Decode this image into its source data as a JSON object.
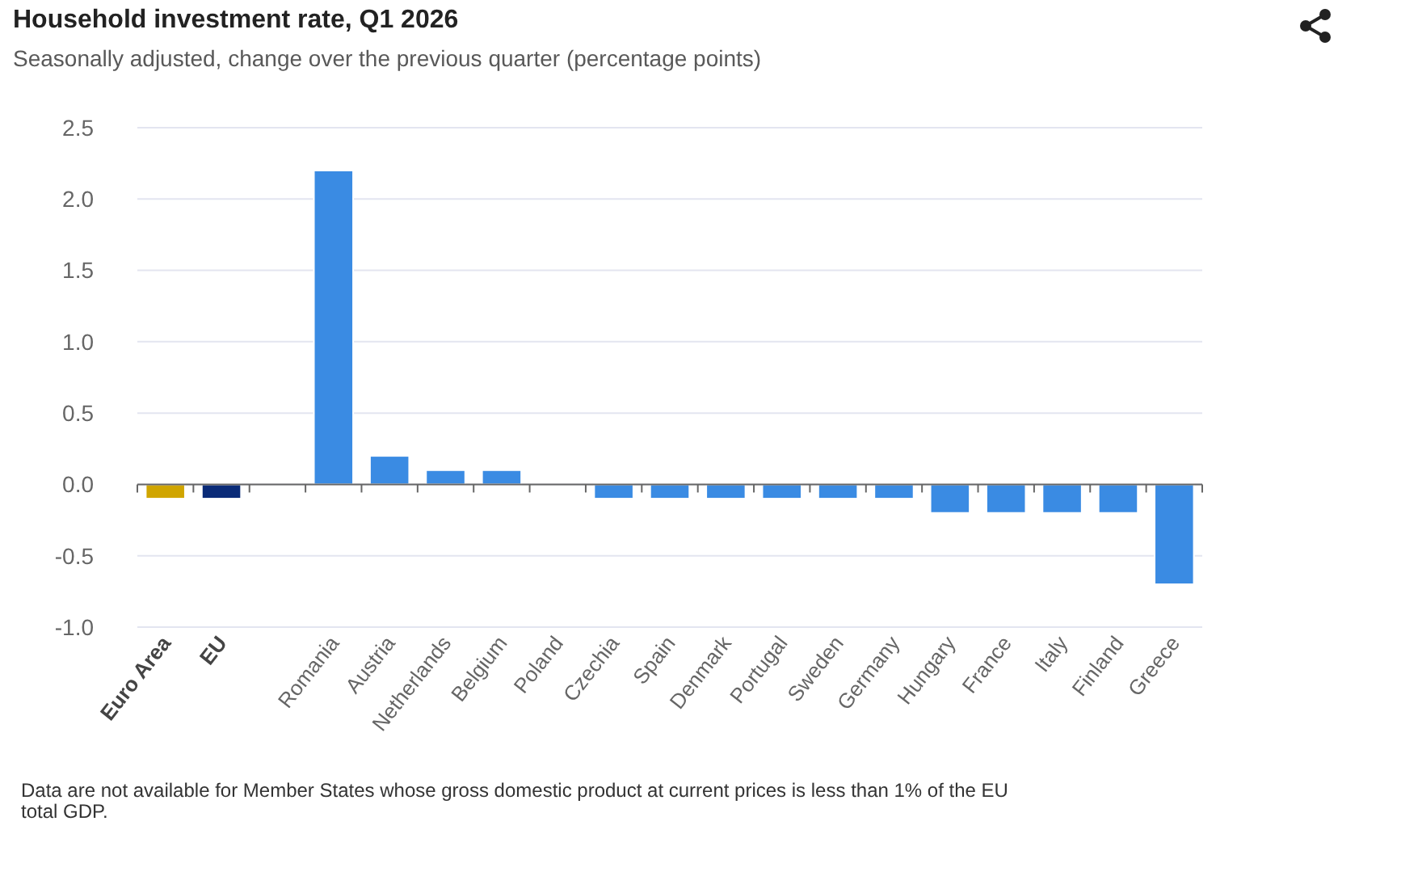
{
  "chart_data": {
    "type": "bar",
    "title": "Household investment rate, Q1 2026",
    "subtitle": "Seasonally adjusted, change over the previous quarter (percentage points)",
    "categories": [
      "Euro Area",
      "EU",
      null,
      "Romania",
      "Austria",
      "Netherlands",
      "Belgium",
      "Poland",
      "Czechia",
      "Spain",
      "Denmark",
      "Portugal",
      "Sweden",
      "Germany",
      "Hungary",
      "France",
      "Italy",
      "Finland",
      "Greece"
    ],
    "values": [
      -0.1,
      -0.1,
      null,
      2.2,
      0.2,
      0.1,
      0.1,
      0,
      -0.1,
      -0.1,
      -0.1,
      -0.1,
      -0.1,
      -0.1,
      -0.2,
      -0.2,
      -0.2,
      -0.2,
      -0.7
    ],
    "colors": [
      "#d0a500",
      "#0a2b78",
      null,
      "#3a8be3",
      "#3a8be3",
      "#3a8be3",
      "#3a8be3",
      "#3a8be3",
      "#3a8be3",
      "#3a8be3",
      "#3a8be3",
      "#3a8be3",
      "#3a8be3",
      "#3a8be3",
      "#3a8be3",
      "#3a8be3",
      "#3a8be3",
      "#3a8be3",
      "#3a8be3"
    ],
    "ylim": [
      -1,
      2.5
    ],
    "yticks": [
      {
        "value": -1,
        "label": "-1.0"
      },
      -0.5,
      {
        "value": 0,
        "label": "0.0"
      },
      0.5,
      {
        "value": 1,
        "label": "1.0"
      },
      1.5,
      {
        "value": 2,
        "label": "2.0"
      },
      2.5
    ],
    "grid": "y",
    "annotations": [
      "Data are not available for Member States whose gross domestic product at current prices is less than 1% of the EU total GDP."
    ]
  }
}
